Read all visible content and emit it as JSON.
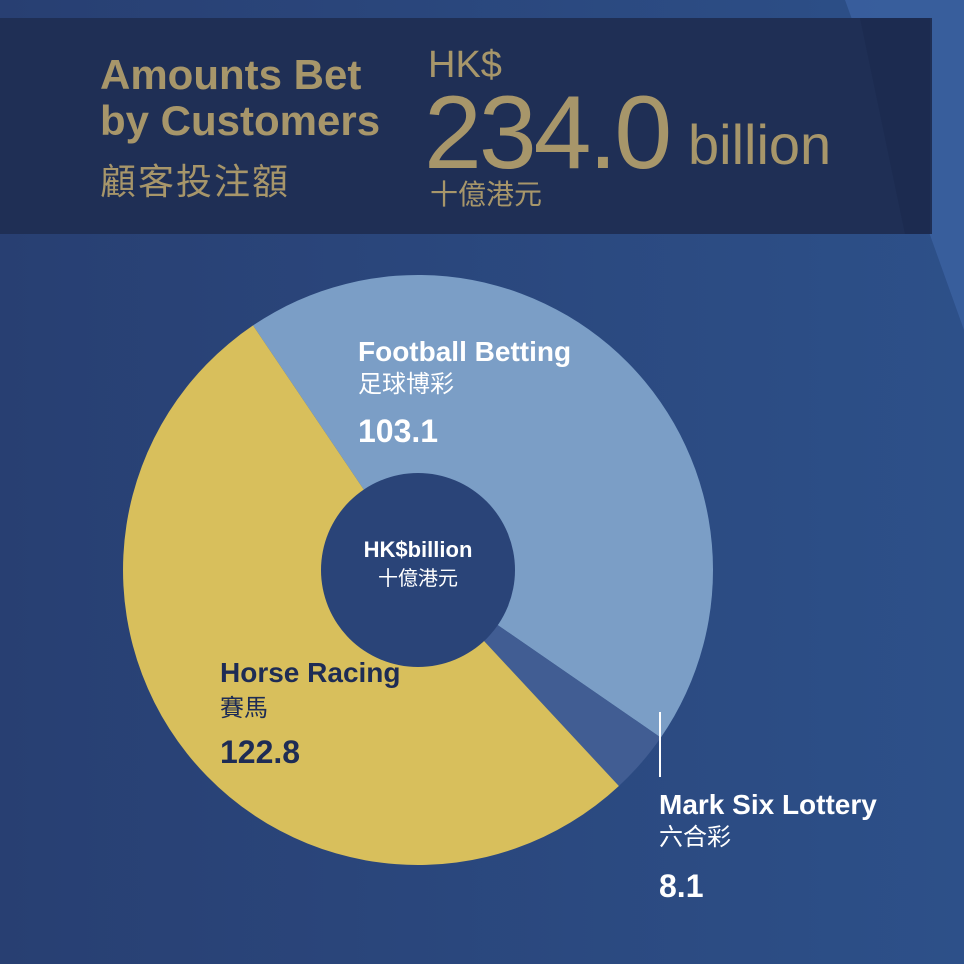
{
  "header": {
    "title_en_line1": "Amounts Bet",
    "title_en_line2": "by Customers",
    "title_zh": "顧客投注額",
    "currency": "HK$",
    "total": "234.0",
    "unit": "billion",
    "unit_zh": "十億港元"
  },
  "colors": {
    "background": "#2b4a80",
    "header_band": "#1f2f55",
    "horse_racing": "#d8bf5c",
    "football": "#7b9ec6",
    "mark_six": "#415d93",
    "center": "#2a4478",
    "title_gold": "#a7966a"
  },
  "chart_data": {
    "type": "pie",
    "donut": true,
    "center_label": "HK$billion",
    "center_label_zh": "十億港元",
    "slices": [
      {
        "label": "Football Betting",
        "label_zh": "足球博彩",
        "value": 103.1
      },
      {
        "label": "Mark Six Lottery",
        "label_zh": "六合彩",
        "value": 8.1
      },
      {
        "label": "Horse Racing",
        "label_zh": "賽馬",
        "value": 122.8
      }
    ]
  }
}
